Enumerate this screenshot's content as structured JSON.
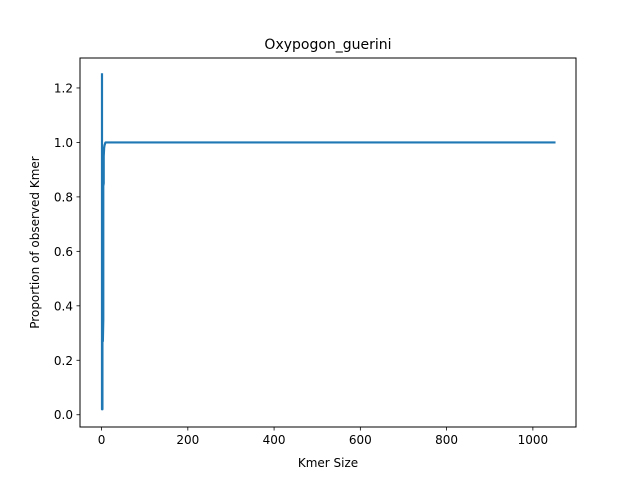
{
  "chart_data": {
    "type": "line",
    "title": "Oxypogon_guerini",
    "xlabel": "Kmer Size",
    "ylabel": "Proportion of observed Kmer",
    "xlim": [
      -50,
      1100
    ],
    "ylim": [
      -0.045,
      1.31
    ],
    "x_ticks": [
      0,
      200,
      400,
      600,
      800,
      1000
    ],
    "y_ticks": [
      0.0,
      0.2,
      0.4,
      0.6,
      0.8,
      1.0,
      1.2
    ],
    "x_tick_labels": [
      "0",
      "200",
      "400",
      "600",
      "800",
      "1000"
    ],
    "y_tick_labels": [
      "0.0",
      "0.2",
      "0.4",
      "0.6",
      "0.8",
      "1.0",
      "1.2"
    ],
    "grid": false,
    "series": [
      {
        "color": "#1f77b4",
        "x": [
          1,
          1,
          1,
          2,
          2,
          3,
          3,
          4,
          4,
          5,
          5,
          6,
          7,
          8,
          9,
          10,
          12,
          15,
          20,
          30,
          50,
          100,
          200,
          400,
          600,
          800,
          1000,
          1050
        ],
        "y": [
          1.25,
          0.5,
          0.02,
          0.02,
          0.6,
          0.8,
          0.27,
          0.35,
          0.84,
          0.85,
          0.95,
          0.98,
          0.99,
          0.995,
          1.0,
          1.0,
          1.0,
          1.0,
          1.0,
          1.0,
          1.0,
          1.0,
          1.0,
          1.0,
          1.0,
          1.0,
          1.0,
          1.0
        ]
      }
    ]
  }
}
